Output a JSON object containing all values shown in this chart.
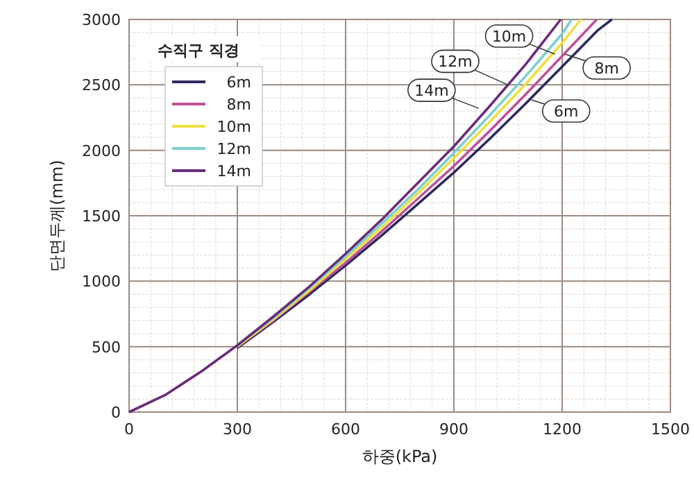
{
  "chart_data": {
    "type": "line",
    "xlabel": "하중(kPa)",
    "ylabel": "단면두께(mm)",
    "legend_title": "수직구 직경",
    "legend": "top left",
    "grid": true,
    "marker": "none",
    "line_style": "solid",
    "xlim": [
      0,
      1500
    ],
    "ylim": [
      0,
      3000
    ],
    "xticks": [
      0,
      300,
      600,
      900,
      1200,
      1500
    ],
    "yticks": [
      0,
      500,
      1000,
      1500,
      2000,
      2500,
      3000
    ],
    "series": [
      {
        "name": "6m",
        "color": "#2e2a5e",
        "x": [
          300,
          400,
          500,
          600,
          700,
          800,
          900,
          1000,
          1100,
          1200,
          1300,
          1338
        ],
        "values": [
          490,
          690,
          900,
          1120,
          1350,
          1590,
          1830,
          2090,
          2360,
          2640,
          2920,
          3000
        ]
      },
      {
        "name": "8m",
        "color": "#c0509a",
        "x": [
          300,
          400,
          500,
          600,
          700,
          800,
          900,
          1000,
          1100,
          1200,
          1296
        ],
        "values": [
          500,
          700,
          920,
          1140,
          1380,
          1630,
          1880,
          2150,
          2430,
          2720,
          3000
        ]
      },
      {
        "name": "10m",
        "color": "#eee040",
        "x": [
          300,
          400,
          500,
          600,
          700,
          800,
          900,
          1000,
          1100,
          1200,
          1252
        ],
        "values": [
          500,
          710,
          930,
          1170,
          1410,
          1670,
          1940,
          2220,
          2510,
          2820,
          3000
        ]
      },
      {
        "name": "12m",
        "color": "#7ccfd0",
        "x": [
          300,
          400,
          500,
          600,
          700,
          800,
          900,
          1000,
          1100,
          1200,
          1226
        ],
        "values": [
          510,
          720,
          950,
          1190,
          1440,
          1700,
          1980,
          2270,
          2570,
          2890,
          3000
        ]
      },
      {
        "name": "14m",
        "color": "#6a2c7a",
        "x": [
          0,
          100,
          200,
          300,
          400,
          500,
          600,
          700,
          800,
          900,
          1000,
          1100,
          1196
        ],
        "values": [
          0,
          130,
          310,
          510,
          730,
          960,
          1210,
          1470,
          1750,
          2030,
          2340,
          2660,
          3000
        ]
      }
    ],
    "annotations": [
      {
        "text": "10m",
        "x": 1180,
        "y": 2735
      },
      {
        "text": "12m",
        "x": 1050,
        "y": 2500
      },
      {
        "text": "14m",
        "x": 969,
        "y": 2321
      },
      {
        "text": "8m",
        "x": 1208,
        "y": 2735
      },
      {
        "text": "6m",
        "x": 1115,
        "y": 2385
      }
    ]
  }
}
